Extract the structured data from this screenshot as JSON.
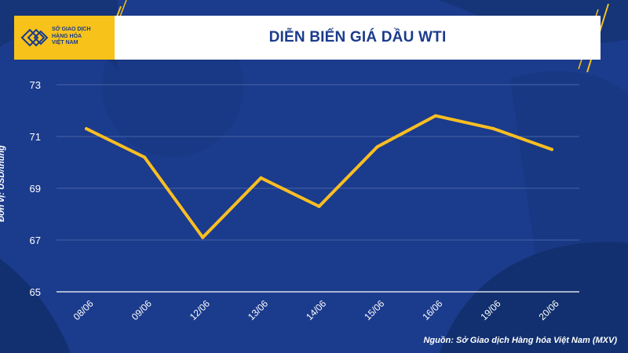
{
  "header": {
    "logo_lines": [
      "SỞ GIAO DỊCH",
      "HÀNG HÓA",
      "VIỆT NAM"
    ],
    "logo_name": "mxv-logo"
  },
  "chart_data": {
    "type": "line",
    "title": "DIỄN BIẾN GIÁ DẦU WTI",
    "ylabel": "Đơn vị: USD/thùng",
    "xlabel": "",
    "categories": [
      "08/06",
      "09/06",
      "12/06",
      "13/06",
      "14/06",
      "15/06",
      "16/06",
      "19/06",
      "20/06"
    ],
    "series": [
      {
        "values": [
          71.3,
          70.2,
          67.1,
          69.4,
          68.3,
          70.6,
          71.8,
          71.3,
          70.5
        ]
      }
    ],
    "ylim": [
      65,
      73
    ],
    "yticks": [
      "65",
      "67",
      "69",
      "71",
      "73"
    ],
    "grid": true,
    "legend": "none"
  },
  "source": "Nguồn: Sở Giao dịch Hàng hóa Việt Nam (MXV)",
  "colors": {
    "background": "#1b3b8c",
    "background_dark": "#12306f",
    "line": "#f9be22",
    "accent": "#f7c21a",
    "text": "#ffffff"
  }
}
